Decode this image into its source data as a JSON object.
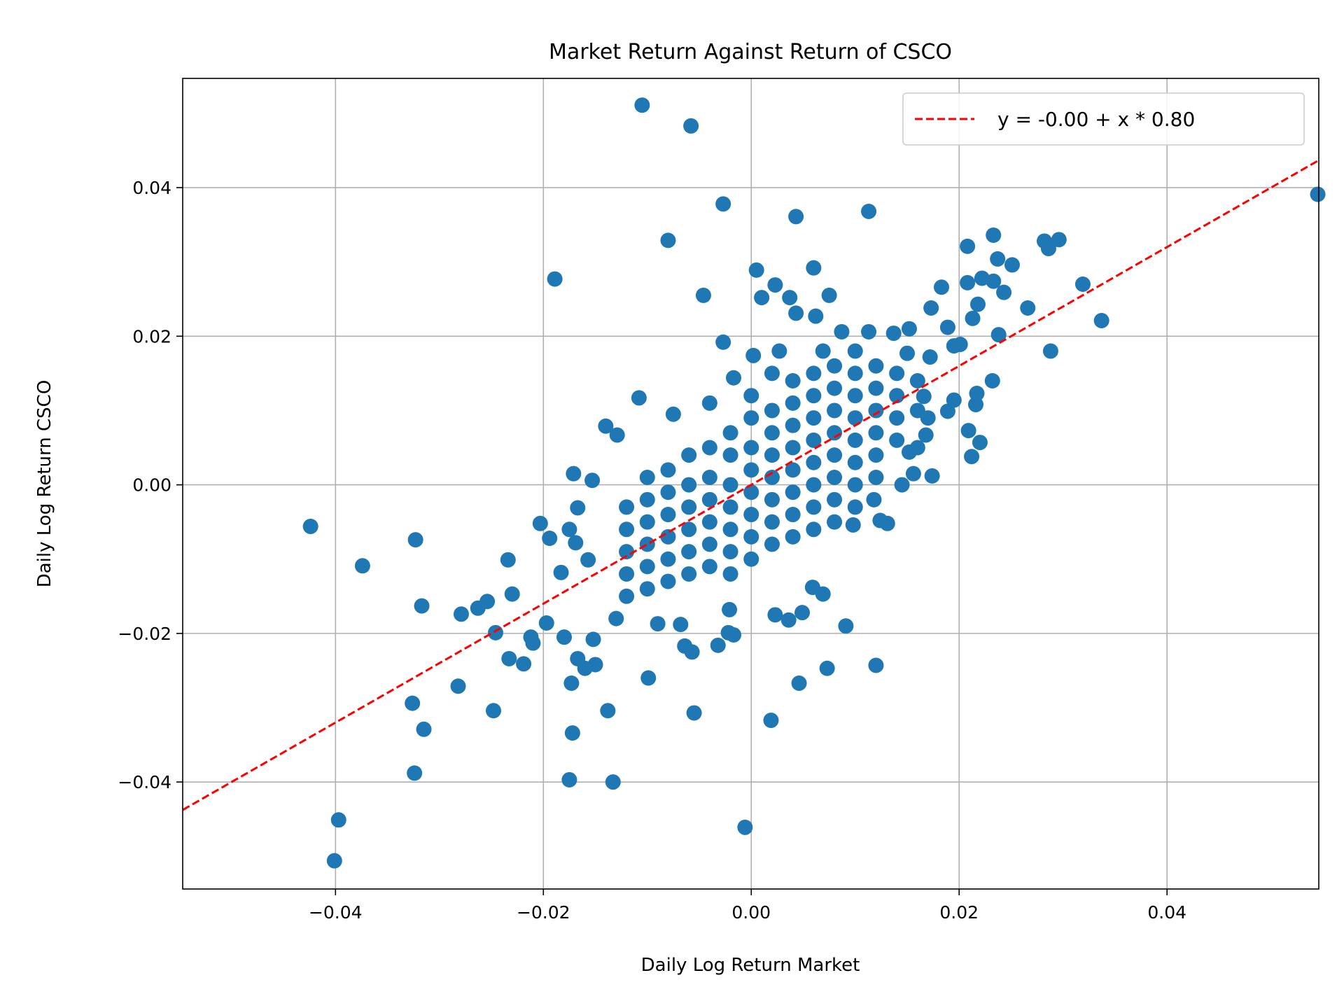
{
  "chart_data": {
    "type": "scatter",
    "title": "Market Return Against Return of CSCO",
    "xlabel": "Daily Log Return Market",
    "ylabel": "Daily Log Return CSCO",
    "xlim": [
      -0.0547,
      0.0546
    ],
    "ylim": [
      -0.0544,
      0.0547
    ],
    "xticks": [
      -0.04,
      -0.02,
      0.0,
      0.02,
      0.04
    ],
    "xtick_labels": [
      "−0.04",
      "−0.02",
      "0.00",
      "0.02",
      "0.04"
    ],
    "yticks": [
      -0.04,
      -0.02,
      0.0,
      0.02,
      0.04
    ],
    "ytick_labels": [
      "−0.04",
      "−0.02",
      "0.00",
      "0.02",
      "0.04"
    ],
    "grid": true,
    "legend_position": "top-right",
    "point_color": "#1f77b4",
    "fit_line": {
      "label": "y = -0.00 + x * 0.80",
      "intercept": 0.0,
      "slope": 0.8,
      "color": "#ff0000",
      "style": "dashed"
    },
    "points": [
      [
        -0.0105,
        0.0511
      ],
      [
        -0.0058,
        0.0483
      ],
      [
        -0.0027,
        0.0378
      ],
      [
        0.0043,
        0.0361
      ],
      [
        0.0113,
        0.0368
      ],
      [
        -0.008,
        0.0329
      ],
      [
        -0.0189,
        0.0277
      ],
      [
        0.0545,
        0.0391
      ],
      [
        0.0208,
        0.0321
      ],
      [
        0.0233,
        0.0336
      ],
      [
        0.0282,
        0.0328
      ],
      [
        0.0296,
        0.033
      ],
      [
        0.0286,
        0.0318
      ],
      [
        0.0237,
        0.0304
      ],
      [
        0.0251,
        0.0296
      ],
      [
        0.0005,
        0.0289
      ],
      [
        0.006,
        0.0292
      ],
      [
        0.0319,
        0.027
      ],
      [
        0.0337,
        0.0221
      ],
      [
        0.0288,
        0.018
      ],
      [
        -0.0046,
        0.0255
      ],
      [
        0.001,
        0.0252
      ],
      [
        0.0023,
        0.0269
      ],
      [
        0.0037,
        0.0252
      ],
      [
        0.0075,
        0.0255
      ],
      [
        0.0043,
        0.0231
      ],
      [
        0.0062,
        0.0227
      ],
      [
        0.0183,
        0.0266
      ],
      [
        0.0208,
        0.0272
      ],
      [
        0.0222,
        0.0278
      ],
      [
        0.0233,
        0.0274
      ],
      [
        0.0243,
        0.0259
      ],
      [
        0.0266,
        0.0238
      ],
      [
        0.0173,
        0.0238
      ],
      [
        0.0218,
        0.0243
      ],
      [
        0.0213,
        0.0224
      ],
      [
        0.0238,
        0.0202
      ],
      [
        0.0189,
        0.0212
      ],
      [
        -0.0027,
        0.0192
      ],
      [
        0.0002,
        0.0174
      ],
      [
        0.0027,
        0.018
      ],
      [
        0.0087,
        0.0206
      ],
      [
        0.0113,
        0.0206
      ],
      [
        0.0152,
        0.021
      ],
      [
        0.0137,
        0.0204
      ],
      [
        -0.0108,
        0.0117
      ],
      [
        -0.014,
        0.0079
      ],
      [
        -0.0129,
        0.0067
      ],
      [
        -0.0075,
        0.0095
      ],
      [
        -0.0017,
        0.0144
      ],
      [
        0.0232,
        0.014
      ],
      [
        0.0217,
        0.0123
      ],
      [
        0.0216,
        0.0108
      ],
      [
        0.0209,
        0.0073
      ],
      [
        0.022,
        0.0057
      ],
      [
        0.0212,
        0.0038
      ],
      [
        0.0174,
        0.0012
      ],
      [
        -0.0171,
        0.0015
      ],
      [
        -0.0153,
        0.0006
      ],
      [
        -0.0424,
        -0.0056
      ],
      [
        -0.0323,
        -0.0074
      ],
      [
        -0.0374,
        -0.0109
      ],
      [
        -0.0203,
        -0.0052
      ],
      [
        -0.0194,
        -0.0072
      ],
      [
        -0.0234,
        -0.0101
      ],
      [
        -0.0317,
        -0.0163
      ],
      [
        -0.023,
        -0.0147
      ],
      [
        -0.0263,
        -0.0166
      ],
      [
        -0.0254,
        -0.0157
      ],
      [
        -0.0279,
        -0.0174
      ],
      [
        -0.0246,
        -0.0199
      ],
      [
        -0.0197,
        -0.0186
      ],
      [
        -0.0212,
        -0.0205
      ],
      [
        -0.021,
        -0.0213
      ],
      [
        -0.0233,
        -0.0234
      ],
      [
        -0.0219,
        -0.0241
      ],
      [
        -0.0282,
        -0.0271
      ],
      [
        -0.0248,
        -0.0304
      ],
      [
        -0.0326,
        -0.0294
      ],
      [
        -0.0315,
        -0.0329
      ],
      [
        -0.0324,
        -0.0388
      ],
      [
        -0.0397,
        -0.0451
      ],
      [
        -0.0401,
        -0.0506
      ],
      [
        -0.0175,
        -0.0397
      ],
      [
        -0.0133,
        -0.04
      ],
      [
        -0.0172,
        -0.0334
      ],
      [
        -0.0173,
        -0.0267
      ],
      [
        -0.0138,
        -0.0304
      ],
      [
        -0.0099,
        -0.026
      ],
      [
        -0.0055,
        -0.0307
      ],
      [
        0.0019,
        -0.0317
      ],
      [
        -0.0006,
        -0.0461
      ],
      [
        0.0046,
        -0.0267
      ],
      [
        0.0073,
        -0.0247
      ],
      [
        0.012,
        -0.0243
      ],
      [
        0.0091,
        -0.019
      ],
      [
        0.0049,
        -0.0172
      ],
      [
        0.0036,
        -0.0182
      ],
      [
        0.0023,
        -0.0175
      ],
      [
        0.0059,
        -0.0138
      ],
      [
        0.0069,
        -0.0147
      ],
      [
        -0.0032,
        -0.0216
      ],
      [
        -0.0057,
        -0.0225
      ],
      [
        -0.0064,
        -0.0217
      ],
      [
        -0.009,
        -0.0187
      ],
      [
        -0.0068,
        -0.0188
      ],
      [
        -0.0022,
        -0.0199
      ],
      [
        -0.0017,
        -0.0202
      ],
      [
        -0.0021,
        -0.0168
      ],
      [
        -0.013,
        -0.018
      ],
      [
        -0.0152,
        -0.0208
      ],
      [
        -0.0167,
        -0.0234
      ],
      [
        -0.015,
        -0.0242
      ],
      [
        -0.016,
        -0.0247
      ],
      [
        -0.018,
        -0.0205
      ],
      [
        -0.0183,
        -0.0118
      ],
      [
        -0.0167,
        -0.0031
      ],
      [
        -0.0175,
        -0.006
      ],
      [
        -0.0169,
        -0.0078
      ],
      [
        -0.0157,
        -0.0101
      ],
      [
        0.0131,
        -0.0052
      ],
      [
        0.0124,
        -0.0048
      ],
      [
        0.0098,
        -0.0054
      ],
      [
        0.0118,
        -0.002
      ],
      [
        0.0145,
        0.0
      ],
      [
        0.0156,
        0.0015
      ],
      [
        0.0152,
        0.0044
      ],
      [
        0.0168,
        0.0067
      ],
      [
        0.017,
        0.009
      ],
      [
        0.0166,
        0.0119
      ],
      [
        0.0189,
        0.0099
      ],
      [
        0.0195,
        0.0114
      ],
      [
        0.0172,
        0.0172
      ],
      [
        0.0195,
        0.0187
      ],
      [
        0.0201,
        0.0189
      ],
      [
        0.015,
        0.0177
      ],
      [
        0.0069,
        0.018
      ],
      [
        -0.012,
        -0.015
      ],
      [
        -0.012,
        -0.012
      ],
      [
        -0.012,
        -0.009
      ],
      [
        -0.012,
        -0.006
      ],
      [
        -0.012,
        -0.003
      ],
      [
        -0.01,
        -0.014
      ],
      [
        -0.01,
        -0.011
      ],
      [
        -0.01,
        -0.008
      ],
      [
        -0.01,
        -0.005
      ],
      [
        -0.01,
        -0.002
      ],
      [
        -0.01,
        0.001
      ],
      [
        -0.008,
        -0.013
      ],
      [
        -0.008,
        -0.01
      ],
      [
        -0.008,
        -0.007
      ],
      [
        -0.008,
        -0.004
      ],
      [
        -0.008,
        -0.001
      ],
      [
        -0.008,
        0.002
      ],
      [
        -0.006,
        -0.012
      ],
      [
        -0.006,
        -0.009
      ],
      [
        -0.006,
        -0.006
      ],
      [
        -0.006,
        -0.003
      ],
      [
        -0.006,
        0.0
      ],
      [
        -0.006,
        0.004
      ],
      [
        -0.004,
        -0.011
      ],
      [
        -0.004,
        -0.008
      ],
      [
        -0.004,
        -0.005
      ],
      [
        -0.004,
        -0.002
      ],
      [
        -0.004,
        0.001
      ],
      [
        -0.004,
        0.005
      ],
      [
        -0.004,
        0.011
      ],
      [
        -0.002,
        -0.012
      ],
      [
        -0.002,
        -0.009
      ],
      [
        -0.002,
        -0.006
      ],
      [
        -0.002,
        -0.003
      ],
      [
        -0.002,
        0.0
      ],
      [
        -0.002,
        0.004
      ],
      [
        -0.002,
        0.007
      ],
      [
        0.0,
        -0.01
      ],
      [
        0.0,
        -0.007
      ],
      [
        0.0,
        -0.004
      ],
      [
        0.0,
        -0.001
      ],
      [
        0.0,
        0.002
      ],
      [
        0.0,
        0.005
      ],
      [
        0.0,
        0.009
      ],
      [
        0.0,
        0.012
      ],
      [
        0.002,
        -0.008
      ],
      [
        0.002,
        -0.005
      ],
      [
        0.002,
        -0.002
      ],
      [
        0.002,
        0.001
      ],
      [
        0.002,
        0.004
      ],
      [
        0.002,
        0.007
      ],
      [
        0.002,
        0.01
      ],
      [
        0.002,
        0.015
      ],
      [
        0.004,
        -0.007
      ],
      [
        0.004,
        -0.004
      ],
      [
        0.004,
        -0.001
      ],
      [
        0.004,
        0.002
      ],
      [
        0.004,
        0.005
      ],
      [
        0.004,
        0.008
      ],
      [
        0.004,
        0.011
      ],
      [
        0.004,
        0.014
      ],
      [
        0.006,
        -0.006
      ],
      [
        0.006,
        -0.003
      ],
      [
        0.006,
        0.0
      ],
      [
        0.006,
        0.003
      ],
      [
        0.006,
        0.006
      ],
      [
        0.006,
        0.009
      ],
      [
        0.006,
        0.012
      ],
      [
        0.006,
        0.015
      ],
      [
        0.008,
        -0.005
      ],
      [
        0.008,
        -0.002
      ],
      [
        0.008,
        0.001
      ],
      [
        0.008,
        0.004
      ],
      [
        0.008,
        0.007
      ],
      [
        0.008,
        0.01
      ],
      [
        0.008,
        0.013
      ],
      [
        0.008,
        0.016
      ],
      [
        0.01,
        -0.003
      ],
      [
        0.01,
        0.0
      ],
      [
        0.01,
        0.003
      ],
      [
        0.01,
        0.006
      ],
      [
        0.01,
        0.009
      ],
      [
        0.01,
        0.012
      ],
      [
        0.01,
        0.015
      ],
      [
        0.01,
        0.018
      ],
      [
        0.012,
        0.001
      ],
      [
        0.012,
        0.004
      ],
      [
        0.012,
        0.007
      ],
      [
        0.012,
        0.01
      ],
      [
        0.012,
        0.013
      ],
      [
        0.012,
        0.016
      ],
      [
        0.014,
        0.006
      ],
      [
        0.014,
        0.009
      ],
      [
        0.014,
        0.012
      ],
      [
        0.014,
        0.015
      ],
      [
        0.016,
        0.005
      ],
      [
        0.016,
        0.01
      ],
      [
        0.016,
        0.014
      ]
    ]
  }
}
